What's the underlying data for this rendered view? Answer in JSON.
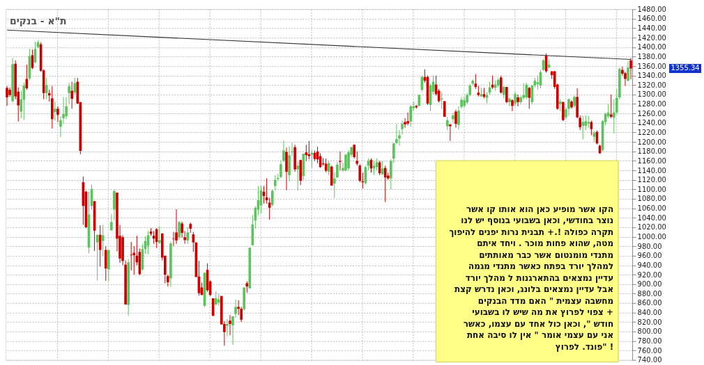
{
  "chart_data": {
    "type": "candlestick",
    "title": "ת\"א - בנקים",
    "categories": [
      null,
      null,
      null,
      null,
      null,
      null,
      null,
      null,
      null,
      null,
      null,
      null,
      null,
      null,
      null,
      null,
      null,
      null,
      null,
      null,
      null,
      null,
      null,
      null,
      null,
      null,
      null,
      null,
      null,
      null,
      null,
      null,
      null,
      null,
      null,
      null,
      null,
      null,
      null,
      null,
      null,
      null,
      null,
      null,
      null,
      null,
      null,
      null,
      null,
      null,
      null,
      null,
      null,
      null,
      null,
      null,
      null,
      null,
      null,
      null,
      null,
      null,
      null,
      null,
      null,
      null,
      null,
      null,
      null,
      null,
      null,
      null,
      null,
      null,
      null,
      null,
      null,
      null,
      null,
      null,
      null,
      null,
      null,
      null,
      null,
      null,
      null,
      null,
      null,
      null,
      null,
      null,
      null,
      null,
      null,
      null,
      null,
      null,
      null,
      null,
      null,
      null,
      null,
      null,
      null,
      null,
      null,
      null,
      null,
      null,
      null,
      null,
      null,
      null,
      null,
      null,
      null,
      null,
      null,
      null,
      null,
      null,
      null,
      null,
      null,
      null,
      null,
      null,
      null,
      null,
      null,
      null,
      null,
      null,
      null,
      null,
      null,
      null,
      null,
      null,
      null,
      null,
      null,
      null,
      null,
      null,
      null,
      null,
      null,
      null,
      null,
      null,
      null,
      null,
      null,
      null,
      null,
      null,
      null,
      null,
      null,
      null,
      null,
      null,
      null,
      null,
      null,
      null,
      null,
      null,
      null,
      null,
      null,
      null,
      null,
      null,
      null,
      null,
      null,
      null,
      null,
      null,
      null,
      null,
      null,
      null,
      null,
      null,
      null,
      null,
      null,
      null,
      null,
      null,
      null,
      null,
      null,
      null,
      null,
      null,
      null,
      null,
      null,
      null,
      null,
      null,
      null,
      null,
      null,
      null,
      null,
      null,
      null,
      null,
      null,
      null,
      null,
      null,
      null,
      null,
      null,
      null
    ],
    "ohlc": [
      [
        1314,
        1318,
        1276,
        1294
      ],
      [
        1310,
        1315,
        1295,
        1299
      ],
      [
        1286,
        1377,
        1283,
        1364
      ],
      [
        1365,
        1372,
        1290,
        1296
      ],
      [
        1306,
        1315,
        1243,
        1277
      ],
      [
        1264,
        1308,
        1250,
        1290
      ],
      [
        1289,
        1325,
        1246,
        1319
      ],
      [
        1333,
        1363,
        1310,
        1313
      ],
      [
        1334,
        1396,
        1330,
        1381
      ],
      [
        1383,
        1395,
        1354,
        1356
      ],
      [
        1368,
        1411,
        1366,
        1396
      ],
      [
        1400,
        1414,
        1398,
        1410
      ],
      [
        1406,
        1410,
        1348,
        1350
      ],
      [
        1351,
        1353,
        1290,
        1303
      ],
      [
        1303,
        1335,
        1290,
        1320
      ],
      [
        1303,
        1310,
        1285,
        1298
      ],
      [
        1292,
        1318,
        1228,
        1248
      ],
      [
        1263,
        1285,
        1245,
        1270
      ],
      [
        1270,
        1275,
        1242,
        1257
      ],
      [
        1232,
        1254,
        1210,
        1246
      ],
      [
        1250,
        1295,
        1239,
        1259
      ],
      [
        1254,
        1295,
        1248,
        1275
      ],
      [
        1303,
        1325,
        1280,
        1318
      ],
      [
        1308,
        1327,
        1270,
        1291
      ],
      [
        1304,
        1335,
        1300,
        1324
      ],
      [
        1327,
        1335,
        1280,
        1281
      ],
      [
        1284,
        1284,
        1174,
        1181
      ],
      [
        1115,
        1127,
        1025,
        1065
      ],
      [
        1095,
        1097,
        1018,
        1020
      ],
      [
        977,
        1095,
        965,
        1047
      ],
      [
        1065,
        1110,
        1057,
        1101
      ],
      [
        1075,
        1075,
        970,
        1013
      ],
      [
        988,
        1004,
        908,
        1004
      ],
      [
        1004,
        1024,
        937,
        972
      ],
      [
        991,
        1025,
        960,
        1003
      ],
      [
        972,
        980,
        907,
        933
      ],
      [
        931,
        972,
        906,
        972
      ],
      [
        1014,
        1048,
        1012,
        1031
      ],
      [
        1057,
        1100,
        1035,
        1096
      ],
      [
        1093,
        1093,
        969,
        996
      ],
      [
        1002,
        1025,
        945,
        954
      ],
      [
        999,
        1003,
        940,
        949
      ],
      [
        941,
        950,
        857,
        857
      ],
      [
        856,
        953,
        833,
        946
      ],
      [
        962,
        989,
        929,
        961
      ],
      [
        966,
        980,
        920,
        961
      ],
      [
        960,
        1002,
        940,
        946
      ],
      [
        968,
        975,
        919,
        921
      ],
      [
        931,
        985,
        928,
        974
      ],
      [
        974,
        1001,
        964,
        991
      ],
      [
        981,
        1012,
        963,
        1003
      ],
      [
        1011,
        1018,
        1002,
        1006
      ],
      [
        1002,
        1012,
        985,
        996
      ],
      [
        1016,
        1018,
        976,
        989
      ],
      [
        987,
        1022,
        985,
        993
      ],
      [
        1007,
        1007,
        950,
        956
      ],
      [
        960,
        960,
        902,
        920
      ],
      [
        917,
        920,
        895,
        904
      ],
      [
        912,
        990,
        894,
        986
      ],
      [
        996,
        1010,
        980,
        995
      ],
      [
        1009,
        1058,
        985,
        992
      ],
      [
        999,
        1033,
        994,
        1031
      ],
      [
        1028,
        1032,
        998,
        1008
      ],
      [
        999,
        1012,
        985,
        993
      ],
      [
        992,
        1020,
        985,
        1009
      ],
      [
        1027,
        1030,
        1008,
        1017
      ],
      [
        1005,
        1010,
        968,
        988
      ],
      [
        988,
        988,
        915,
        915
      ],
      [
        916,
        949,
        876,
        881
      ],
      [
        893,
        903,
        877,
        877
      ],
      [
        854,
        924,
        852,
        924
      ],
      [
        930,
        944,
        884,
        887
      ],
      [
        906,
        908,
        875,
        877
      ],
      [
        870,
        870,
        833,
        833
      ],
      [
        857,
        885,
        855,
        870
      ],
      [
        861,
        880,
        855,
        868
      ],
      [
        875,
        875,
        815,
        815
      ],
      [
        816,
        822,
        770,
        799
      ],
      [
        812,
        826,
        790,
        816
      ],
      [
        823,
        835,
        792,
        816
      ],
      [
        813,
        832,
        772,
        832
      ],
      [
        837,
        867,
        829,
        852
      ],
      [
        852,
        866,
        835,
        848
      ],
      [
        848,
        852,
        820,
        825
      ],
      [
        847,
        893,
        844,
        893
      ],
      [
        902,
        906,
        882,
        895
      ],
      [
        891,
        977,
        891,
        977
      ],
      [
        982,
        1046,
        982,
        1026
      ],
      [
        1034,
        1064,
        1017,
        1061
      ],
      [
        1057,
        1107,
        1045,
        1077
      ],
      [
        1066,
        1107,
        1049,
        1098
      ],
      [
        1095,
        1107,
        1070,
        1086
      ],
      [
        1083,
        1123,
        1070,
        1077
      ],
      [
        1072,
        1082,
        1036,
        1061
      ],
      [
        1067,
        1099,
        1064,
        1097
      ],
      [
        1107,
        1130,
        1097,
        1120
      ],
      [
        1122,
        1133,
        1118,
        1124
      ],
      [
        1126,
        1161,
        1124,
        1153
      ],
      [
        1160,
        1203,
        1157,
        1182
      ],
      [
        1179,
        1188,
        1098,
        1137
      ],
      [
        1130,
        1191,
        1117,
        1172
      ],
      [
        1178,
        1198,
        1170,
        1180
      ],
      [
        1189,
        1194,
        1137,
        1142
      ],
      [
        1142,
        1158,
        1097,
        1150
      ],
      [
        1162,
        1162,
        1109,
        1118
      ],
      [
        1128,
        1175,
        1120,
        1175
      ],
      [
        1178,
        1194,
        1160,
        1172
      ],
      [
        1174,
        1202,
        1163,
        1170
      ],
      [
        1173,
        1182,
        1145,
        1177
      ],
      [
        1177,
        1182,
        1160,
        1164
      ],
      [
        1180,
        1190,
        1155,
        1163
      ],
      [
        1170,
        1176,
        1145,
        1147
      ],
      [
        1155,
        1166,
        1150,
        1153
      ],
      [
        1154,
        1165,
        1136,
        1139
      ],
      [
        1137,
        1160,
        1130,
        1155
      ],
      [
        1148,
        1150,
        1108,
        1108
      ],
      [
        1112,
        1136,
        1082,
        1123
      ],
      [
        1125,
        1157,
        1125,
        1152
      ],
      [
        1160,
        1180,
        1140,
        1158
      ],
      [
        1140,
        1156,
        1137,
        1145
      ],
      [
        1140,
        1175,
        1138,
        1173
      ],
      [
        1144,
        1182,
        1140,
        1178
      ],
      [
        1173,
        1190,
        1168,
        1189
      ],
      [
        1194,
        1195,
        1165,
        1168
      ],
      [
        1160,
        1180,
        1150,
        1154
      ],
      [
        1150,
        1153,
        1115,
        1118
      ],
      [
        1117,
        1135,
        1102,
        1115
      ],
      [
        1113,
        1150,
        1110,
        1147
      ],
      [
        1150,
        1165,
        1140,
        1160
      ],
      [
        1162,
        1165,
        1135,
        1144
      ],
      [
        1144,
        1160,
        1130,
        1150
      ],
      [
        1147,
        1165,
        1140,
        1157
      ],
      [
        1157,
        1160,
        1130,
        1134
      ],
      [
        1132,
        1160,
        1130,
        1144
      ],
      [
        1145,
        1150,
        1073,
        1125
      ],
      [
        1129,
        1135,
        1120,
        1123
      ],
      [
        1123,
        1163,
        1100,
        1160
      ],
      [
        1165,
        1198,
        1155,
        1197
      ],
      [
        1198,
        1238,
        1195,
        1206
      ],
      [
        1207,
        1225,
        1192,
        1214
      ],
      [
        1227,
        1245,
        1215,
        1238
      ],
      [
        1242,
        1250,
        1230,
        1237
      ],
      [
        1244,
        1262,
        1235,
        1239
      ],
      [
        1243,
        1278,
        1232,
        1275
      ],
      [
        1271,
        1285,
        1265,
        1275
      ],
      [
        1276,
        1278,
        1270,
        1273
      ],
      [
        1276,
        1300,
        1275,
        1299
      ],
      [
        1310,
        1340,
        1306,
        1337
      ],
      [
        1337,
        1353,
        1325,
        1329
      ],
      [
        1337,
        1340,
        1278,
        1281
      ],
      [
        1278,
        1323,
        1265,
        1319
      ],
      [
        1306,
        1340,
        1300,
        1327
      ],
      [
        1321,
        1340,
        1298,
        1301
      ],
      [
        1308,
        1312,
        1283,
        1286
      ],
      [
        1290,
        1305,
        1270,
        1292
      ],
      [
        1286,
        1286,
        1253,
        1253
      ],
      [
        1233,
        1253,
        1225,
        1246
      ],
      [
        1237,
        1237,
        1202,
        1233
      ],
      [
        1248,
        1262,
        1240,
        1256
      ],
      [
        1264,
        1268,
        1230,
        1238
      ],
      [
        1236,
        1275,
        1226,
        1266
      ],
      [
        1274,
        1295,
        1270,
        1289
      ],
      [
        1276,
        1295,
        1272,
        1288
      ],
      [
        1283,
        1303,
        1280,
        1299
      ],
      [
        1299,
        1322,
        1296,
        1319
      ],
      [
        1323,
        1332,
        1320,
        1329
      ],
      [
        1323,
        1343,
        1312,
        1316
      ],
      [
        1304,
        1318,
        1296,
        1299
      ],
      [
        1296,
        1314,
        1295,
        1301
      ],
      [
        1301,
        1314,
        1292,
        1295
      ],
      [
        1293,
        1305,
        1282,
        1299
      ],
      [
        1304,
        1327,
        1300,
        1315
      ],
      [
        1321,
        1340,
        1312,
        1315
      ],
      [
        1314,
        1330,
        1308,
        1321
      ],
      [
        1319,
        1335,
        1315,
        1331
      ],
      [
        1336,
        1340,
        1302,
        1304
      ],
      [
        1299,
        1318,
        1292,
        1316
      ],
      [
        1316,
        1316,
        1282,
        1284
      ],
      [
        1284,
        1294,
        1275,
        1291
      ],
      [
        1288,
        1290,
        1265,
        1276
      ],
      [
        1281,
        1306,
        1275,
        1301
      ],
      [
        1294,
        1300,
        1275,
        1284
      ],
      [
        1284,
        1297,
        1280,
        1294
      ],
      [
        1293,
        1324,
        1290,
        1299
      ],
      [
        1294,
        1325,
        1290,
        1321
      ],
      [
        1314,
        1316,
        1270,
        1293
      ],
      [
        1284,
        1320,
        1280,
        1319
      ],
      [
        1319,
        1335,
        1315,
        1329
      ],
      [
        1322,
        1340,
        1310,
        1326
      ],
      [
        1319,
        1352,
        1313,
        1347
      ],
      [
        1352,
        1375,
        1350,
        1372
      ],
      [
        1382,
        1387,
        1346,
        1349
      ],
      [
        1357,
        1374,
        1355,
        1363
      ],
      [
        1349,
        1349,
        1333,
        1341
      ],
      [
        1349,
        1350,
        1312,
        1316
      ],
      [
        1321,
        1323,
        1268,
        1270
      ],
      [
        1280,
        1290,
        1265,
        1285
      ],
      [
        1284,
        1285,
        1244,
        1246
      ],
      [
        1252,
        1272,
        1248,
        1269
      ],
      [
        1270,
        1292,
        1255,
        1290
      ],
      [
        1285,
        1288,
        1270,
        1273
      ],
      [
        1276,
        1298,
        1272,
        1295
      ],
      [
        1295,
        1313,
        1250,
        1252
      ],
      [
        1251,
        1256,
        1225,
        1231
      ],
      [
        1234,
        1255,
        1205,
        1242
      ],
      [
        1234,
        1256,
        1225,
        1244
      ],
      [
        1239,
        1255,
        1230,
        1242
      ],
      [
        1242,
        1245,
        1214,
        1227
      ],
      [
        1211,
        1223,
        1200,
        1219
      ],
      [
        1221,
        1224,
        1195,
        1197
      ],
      [
        1192,
        1194,
        1175,
        1176
      ],
      [
        1183,
        1246,
        1180,
        1244
      ],
      [
        1242,
        1262,
        1235,
        1259
      ],
      [
        1254,
        1280,
        1250,
        1262
      ],
      [
        1258,
        1300,
        1250,
        1253
      ],
      [
        1251,
        1290,
        1218,
        1262
      ],
      [
        1262,
        1312,
        1258,
        1293
      ],
      [
        1294,
        1357,
        1290,
        1354
      ],
      [
        1352,
        1359,
        1340,
        1344
      ],
      [
        1345,
        1348,
        1318,
        1333
      ],
      [
        1329,
        1370,
        1328,
        1357
      ],
      [
        1372,
        1377,
        1332,
        1355
      ]
    ],
    "series": [
      {
        "type": "line",
        "color": "#333333",
        "values": [
          1436,
          null,
          null,
          null,
          null,
          null,
          null,
          null,
          null,
          null,
          null,
          null,
          null,
          null,
          null,
          null,
          null,
          null,
          null,
          null,
          null,
          null,
          null,
          null,
          null,
          null,
          null,
          null,
          null,
          null,
          null,
          null,
          null,
          null,
          null,
          null,
          null,
          null,
          null,
          null,
          null,
          null,
          null,
          null,
          null,
          null,
          null,
          null,
          null,
          null,
          null,
          null,
          null,
          null,
          null,
          null,
          null,
          null,
          null,
          null,
          null,
          null,
          null,
          null,
          null,
          null,
          null,
          null,
          null,
          null,
          null,
          null,
          null,
          null,
          null,
          null,
          null,
          null,
          null,
          null,
          null,
          null,
          null,
          null,
          null,
          null,
          null,
          null,
          null,
          null,
          null,
          null,
          null,
          null,
          null,
          null,
          null,
          null,
          null,
          null,
          null,
          null,
          null,
          null,
          null,
          null,
          null,
          null,
          null,
          null,
          null,
          null,
          null,
          null,
          null,
          null,
          null,
          null,
          null,
          null,
          null,
          null,
          null,
          null,
          null,
          null,
          null,
          null,
          null,
          null,
          null,
          null,
          null,
          null,
          null,
          null,
          null,
          null,
          null,
          null,
          null,
          null,
          null,
          null,
          null,
          null,
          null,
          null,
          null,
          null,
          null,
          null,
          null,
          null,
          null,
          null,
          null,
          null,
          null,
          null,
          null,
          null,
          null,
          null,
          null,
          null,
          null,
          null,
          null,
          null,
          null,
          null,
          null,
          null,
          null,
          null,
          null,
          null,
          null,
          null,
          null,
          null,
          null,
          null,
          null,
          null,
          null,
          null,
          null,
          null,
          null,
          null,
          null,
          null,
          null,
          null,
          null,
          null,
          null,
          null,
          null,
          null,
          null,
          null,
          null,
          null,
          null,
          null,
          null,
          null,
          null,
          null,
          null,
          null,
          null,
          null,
          null,
          null,
          null,
          null,
          null,
          1374
        ]
      }
    ],
    "ylim": [
      740,
      1480
    ],
    "yticks": [
      {
        "value": 740,
        "label": "740.00"
      },
      {
        "value": 760,
        "label": "760.00"
      },
      {
        "value": 780,
        "label": "780.00"
      },
      {
        "value": 800,
        "label": "800.00"
      },
      {
        "value": 820,
        "label": "820.00"
      },
      {
        "value": 840,
        "label": "840.00"
      },
      {
        "value": 860,
        "label": "860.00"
      },
      {
        "value": 880,
        "label": "880.00"
      },
      {
        "value": 900,
        "label": "900.00"
      },
      {
        "value": 920,
        "label": "920.00"
      },
      {
        "value": 940,
        "label": "940.00"
      },
      {
        "value": 960,
        "label": "960.00"
      },
      {
        "value": 980,
        "label": "980.00"
      },
      {
        "value": 1000,
        "label": "1000.00"
      },
      {
        "value": 1020,
        "label": "1020.00"
      },
      {
        "value": 1040,
        "label": "1040.00"
      },
      {
        "value": 1060,
        "label": "1060.00"
      },
      {
        "value": 1080,
        "label": "1080.00"
      },
      {
        "value": 1100,
        "label": "1100.00"
      },
      {
        "value": 1120,
        "label": "1120.00"
      },
      {
        "value": 1140,
        "label": "1140.00"
      },
      {
        "value": 1160,
        "label": "1160.00"
      },
      {
        "value": 1180,
        "label": "1180.00"
      },
      {
        "value": 1200,
        "label": "1200.00"
      },
      {
        "value": 1220,
        "label": "1220.00"
      },
      {
        "value": 1240,
        "label": "1240.00"
      },
      {
        "value": 1260,
        "label": "1260.00"
      },
      {
        "value": 1280,
        "label": "1280.00"
      },
      {
        "value": 1300,
        "label": "1300.00"
      },
      {
        "value": 1320,
        "label": "1320.00"
      },
      {
        "value": 1340,
        "label": "1340.00"
      },
      {
        "value": 1360,
        "label": "1360.00"
      },
      {
        "value": 1380,
        "label": "1380.00"
      },
      {
        "value": 1400,
        "label": "1400.00"
      },
      {
        "value": 1420,
        "label": "1420.00"
      },
      {
        "value": 1440,
        "label": "1440.00"
      },
      {
        "value": 1460,
        "label": "1460.00"
      },
      {
        "value": 1480,
        "label": "1480.00"
      }
    ],
    "grid": true,
    "tick_labels": "y",
    "annotations": [
      "הקו אשר  מופיע כאן הוא אותו קו אשר\nנוצר בחודשי, וכאן בשבועי בנוסף יש לנו\nתקרה כפולה !.+ תבנית נרות יפנים להיפוך\nמטה,  שהוא פחות מוכר . ויחד איתם\nמתנדי מומנטום אשר כבר מאותתים\nלמהלך יורד בפתח כאשר  מתנדי מגמה\nעדיין נמצאים בהתארגנות ל מהלך יורד\nאבל עדיין נמצאים בלונג, וכאן נדרש קצת\nמחשבה  עצמית \" האם  מדד הבנקים\nצפוי לפרוץ את מה שיש לו בשבועי +\nחודש \", וכאן כול אחד עם עצמו, כאשר\nאני עם עצמי אומר \" אין לו סיבה אחת\nפונד. לפרוץ\" !",
      "1355.34"
    ]
  }
}
